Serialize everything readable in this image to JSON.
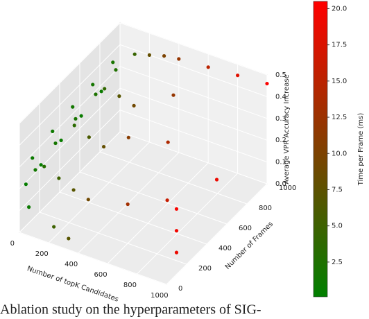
{
  "chart_data": {
    "type": "scatter3d",
    "xlabel": "Number of topK Candidates",
    "ylabel": "Number of Frames",
    "zlabel": "Average VPR Accuracy Increase",
    "colorbar_label": "Time per Frame (ms)",
    "caption": "Ablation study on the hyperparameters of SIG-",
    "xlim": [
      0,
      1000
    ],
    "ylim": [
      0,
      1000
    ],
    "zlim": [
      0,
      0.5
    ],
    "xticks": [
      0,
      200,
      400,
      600,
      800,
      1000
    ],
    "yticks": [
      0,
      200,
      400,
      600,
      800,
      1000
    ],
    "zticks": [
      {
        "value": 0,
        "label": "0.0"
      },
      0.1,
      0.2,
      0.3,
      0.4,
      0.5
    ],
    "clim": [
      0.1,
      20.5
    ],
    "cticks": [
      2.5,
      {
        "value": 5,
        "label": "5.0"
      },
      7.5,
      {
        "value": 10,
        "label": "10.0"
      },
      12.5,
      {
        "value": 15,
        "label": "15.0"
      },
      17.5,
      {
        "value": 20,
        "label": "20.0"
      }
    ],
    "cmap": [
      "#008000",
      "#804000",
      "#ff0000"
    ],
    "grid": true,
    "x": [
      20,
      20,
      20,
      20,
      20,
      40,
      40,
      40,
      40,
      40,
      10,
      10,
      10,
      10,
      10,
      100,
      100,
      100,
      100,
      200,
      200,
      200,
      200,
      300,
      300,
      300,
      300,
      400,
      400,
      400,
      600,
      600,
      600,
      800,
      800,
      1000,
      1000,
      1000,
      1000,
      1000,
      200,
      300,
      30,
      500
    ],
    "y": [
      100,
      300,
      500,
      700,
      900,
      100,
      300,
      500,
      700,
      900,
      50,
      200,
      400,
      600,
      800,
      100,
      400,
      700,
      1000,
      100,
      400,
      700,
      1000,
      100,
      400,
      700,
      1000,
      100,
      500,
      1000,
      200,
      600,
      1000,
      300,
      1000,
      100,
      100,
      100,
      500,
      1000,
      50,
      50,
      50,
      800
    ],
    "z": [
      0.3,
      0.33,
      0.35,
      0.36,
      0.37,
      0.25,
      0.28,
      0.3,
      0.32,
      0.34,
      0.2,
      0.22,
      0.24,
      0.26,
      0.28,
      0.28,
      0.33,
      0.36,
      0.38,
      0.25,
      0.3,
      0.35,
      0.4,
      0.22,
      0.28,
      0.33,
      0.42,
      0.2,
      0.3,
      0.43,
      0.18,
      0.28,
      0.44,
      0.2,
      0.45,
      0.1,
      0.2,
      0.3,
      0.25,
      0.46,
      0.05,
      0.02,
      0.1,
      0.38
    ],
    "t": [
      1.0,
      1.2,
      1.5,
      1.8,
      2.0,
      1.5,
      1.8,
      2.0,
      2.3,
      2.6,
      0.5,
      0.6,
      0.8,
      0.9,
      1.0,
      3.0,
      3.5,
      4.0,
      4.5,
      5,
      6,
      7,
      8,
      7,
      8,
      9,
      10,
      9,
      11,
      12,
      13,
      14,
      15,
      16,
      18,
      19,
      19.5,
      20,
      19,
      20.2,
      5,
      7,
      1,
      12
    ]
  }
}
